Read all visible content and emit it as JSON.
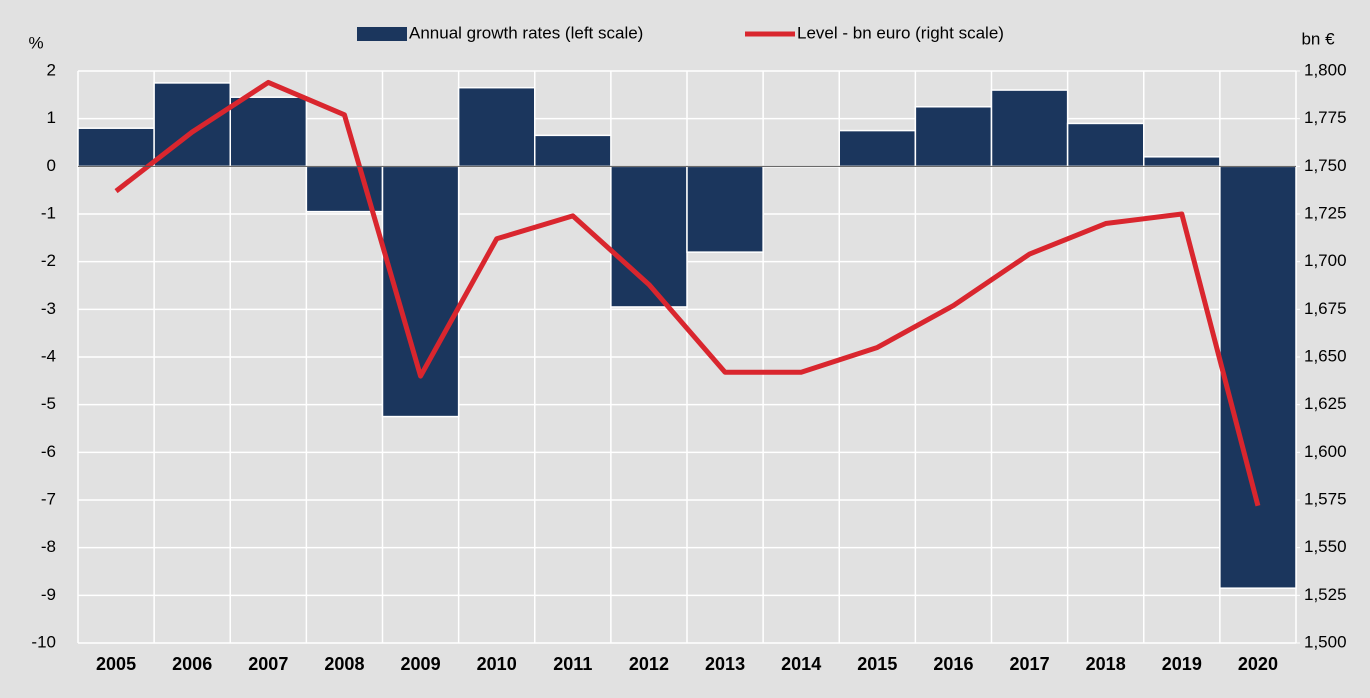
{
  "chart_data": {
    "type": "bar_line",
    "y_label": "%",
    "y2_label": "bn €",
    "categories": [
      "2005",
      "2006",
      "2007",
      "2008",
      "2009",
      "2010",
      "2011",
      "2012",
      "2013",
      "2014",
      "2015",
      "2016",
      "2017",
      "2018",
      "2019",
      "2020"
    ],
    "series": [
      {
        "name": "Annual growth rates (left scale)",
        "type": "bar",
        "color": "#1b365d",
        "values": [
          0.8,
          1.75,
          1.45,
          -0.95,
          -5.25,
          1.65,
          0.65,
          -2.95,
          -1.8,
          0,
          0.75,
          1.25,
          1.6,
          0.9,
          0.2,
          -8.85
        ]
      },
      {
        "name": "Level - bn euro (right scale)",
        "type": "line",
        "axis": "y2",
        "color": "#d9262e",
        "values": [
          1737,
          1768,
          1794,
          1777,
          1640,
          1712,
          1724,
          1688,
          1642,
          1642,
          1655,
          1677,
          1704,
          1720,
          1725,
          1572
        ]
      }
    ],
    "ylim": [
      -10,
      2
    ],
    "yticks": [
      2,
      1,
      0,
      -1,
      -2,
      -3,
      -4,
      -5,
      -6,
      -7,
      -8,
      -9,
      -10
    ],
    "y2lim": [
      1500,
      1800
    ],
    "y2ticks": [
      {
        "value": 1800,
        "label": "1,800"
      },
      {
        "value": 1775,
        "label": "1,775"
      },
      {
        "value": 1750,
        "label": "1,750"
      },
      {
        "value": 1725,
        "label": "1,725"
      },
      {
        "value": 1700,
        "label": "1,700"
      },
      {
        "value": 1675,
        "label": "1,675"
      },
      {
        "value": 1650,
        "label": "1,650"
      },
      {
        "value": 1625,
        "label": "1,625"
      },
      {
        "value": 1600,
        "label": "1,600"
      },
      {
        "value": 1575,
        "label": "1,575"
      },
      {
        "value": 1550,
        "label": "1,550"
      },
      {
        "value": 1525,
        "label": "1,525"
      },
      {
        "value": 1500,
        "label": "1,500"
      }
    ],
    "grid": true,
    "legend": "top"
  }
}
